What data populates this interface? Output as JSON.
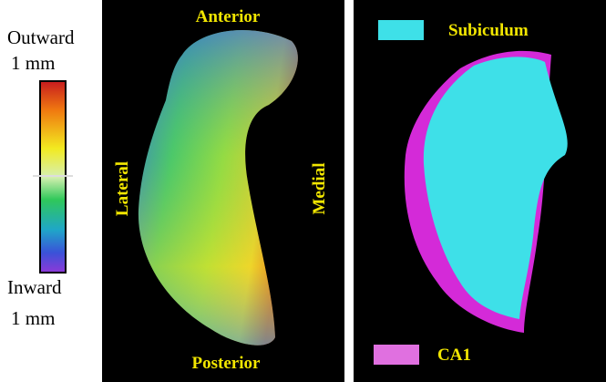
{
  "colorbar": {
    "top_label": "Outward",
    "top_unit": "1 mm",
    "bottom_label": "Inward",
    "bottom_unit": "1 mm"
  },
  "left_panel": {
    "top": "Anterior",
    "bottom": "Posterior",
    "left": "Lateral",
    "right": "Medial"
  },
  "right_panel": {
    "legend": [
      "Subiculum",
      "CA1"
    ]
  }
}
